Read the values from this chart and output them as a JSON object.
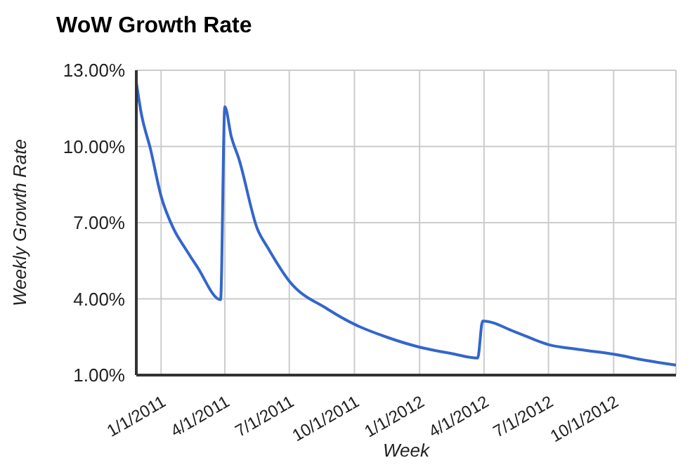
{
  "chart_data": {
    "type": "line",
    "title": "WoW Growth Rate",
    "xlabel": "Week",
    "ylabel": "Weekly Growth Rate",
    "x": [
      "2010-11-27",
      "2010-12-04",
      "2010-12-17",
      "2011-01-01",
      "2011-01-19",
      "2011-02-05",
      "2011-02-21",
      "2011-03-26",
      "2011-04-01",
      "2011-04-10",
      "2011-04-21",
      "2011-05-17",
      "2011-06-01",
      "2011-07-01",
      "2011-08-24",
      "2011-10-01",
      "2011-11-15",
      "2012-01-01",
      "2012-02-15",
      "2012-03-23",
      "2012-03-30",
      "2012-05-15",
      "2012-07-01",
      "2012-08-15",
      "2012-10-01",
      "2012-11-15",
      "2012-12-28"
    ],
    "series": [
      {
        "color": "#3366cc",
        "values": [
          12.52,
          11.3,
          9.9,
          8.04,
          6.74,
          5.95,
          5.26,
          3.97,
          11.56,
          10.4,
          9.5,
          6.75,
          6.0,
          4.7,
          3.6,
          3.0,
          2.5,
          2.1,
          1.85,
          1.67,
          3.13,
          2.7,
          2.2,
          2.0,
          1.82,
          1.58,
          1.39
        ]
      }
    ],
    "xlim": [
      "2010-11-27",
      "2012-12-28"
    ],
    "xticks": [
      {
        "value": "2011-01-01",
        "label": "1/1/2011"
      },
      {
        "value": "2011-04-01",
        "label": "4/1/2011"
      },
      {
        "value": "2011-07-01",
        "label": "7/1/2011"
      },
      {
        "value": "2011-10-01",
        "label": "10/1/2011"
      },
      {
        "value": "2012-01-01",
        "label": "1/1/2012"
      },
      {
        "value": "2012-04-01",
        "label": "4/1/2012"
      },
      {
        "value": "2012-07-01",
        "label": "7/1/2012"
      },
      {
        "value": "2012-10-01",
        "label": "10/1/2012"
      }
    ],
    "ylim": [
      1,
      13
    ],
    "yticks": [
      {
        "value": 1,
        "label": "1.00%"
      },
      {
        "value": 4,
        "label": "4.00%"
      },
      {
        "value": 7,
        "label": "7.00%"
      },
      {
        "value": 10,
        "label": "10.00%"
      },
      {
        "value": 13,
        "label": "13.00%"
      }
    ],
    "grid": true,
    "marker": "none",
    "line_style": "solid"
  }
}
